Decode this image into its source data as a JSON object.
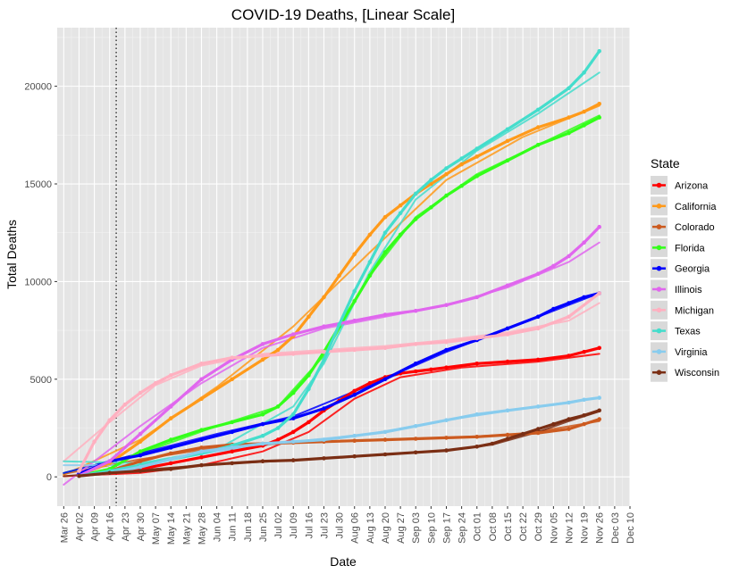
{
  "chart_data": {
    "type": "line",
    "title": "COVID-19 Deaths, [Linear Scale]",
    "xlabel": "Date",
    "ylabel": "Total Deaths",
    "ylim": [
      -1500,
      23000
    ],
    "yticks": [
      0,
      5000,
      10000,
      15000,
      20000
    ],
    "xlim": [
      -3,
      259
    ],
    "xtick_labels": [
      "Mar 26",
      "Apr 02",
      "Apr 09",
      "Apr 16",
      "Apr 23",
      "Apr 30",
      "May 07",
      "May 14",
      "May 21",
      "May 28",
      "Jun 04",
      "Jun 11",
      "Jun 18",
      "Jun 25",
      "Jul 02",
      "Jul 09",
      "Jul 16",
      "Jul 23",
      "Jul 30",
      "Aug 06",
      "Aug 13",
      "Aug 20",
      "Aug 27",
      "Sep 03",
      "Sep 10",
      "Sep 17",
      "Sep 24",
      "Oct 01",
      "Oct 08",
      "Oct 15",
      "Oct 22",
      "Oct 29",
      "Nov 05",
      "Nov 12",
      "Nov 19",
      "Nov 26",
      "Dec 03",
      "Dec 10"
    ],
    "xtick_days": [
      0,
      7,
      14,
      21,
      28,
      35,
      42,
      49,
      56,
      63,
      70,
      77,
      84,
      91,
      98,
      105,
      112,
      119,
      126,
      133,
      140,
      147,
      154,
      161,
      168,
      175,
      182,
      189,
      196,
      203,
      210,
      217,
      224,
      231,
      238,
      245,
      252,
      259
    ],
    "vline_day": 24,
    "grid": true,
    "legend_position": "right",
    "legend_title": "State",
    "series": [
      {
        "name": "Arizona",
        "color": "#ff0000",
        "x": [
          7,
          21,
          35,
          49,
          63,
          77,
          91,
          98,
          105,
          112,
          119,
          126,
          133,
          140,
          147,
          154,
          161,
          168,
          175,
          189,
          203,
          217,
          231,
          238,
          245
        ],
        "values": [
          100,
          200,
          400,
          700,
          1000,
          1300,
          1600,
          1900,
          2300,
          2800,
          3400,
          3900,
          4400,
          4800,
          5100,
          5300,
          5400,
          5500,
          5600,
          5800,
          5900,
          6000,
          6200,
          6400,
          6600
        ],
        "fit": [
          [
            0,
            30
          ],
          [
            35,
            200
          ],
          [
            63,
            600
          ],
          [
            91,
            1300
          ],
          [
            112,
            2300
          ],
          [
            133,
            4000
          ],
          [
            154,
            5100
          ],
          [
            182,
            5600
          ],
          [
            217,
            5900
          ],
          [
            245,
            6300
          ]
        ]
      },
      {
        "name": "California",
        "color": "#ff9a1a",
        "x": [
          7,
          21,
          35,
          49,
          63,
          77,
          91,
          98,
          105,
          112,
          119,
          126,
          133,
          140,
          147,
          154,
          161,
          168,
          175,
          182,
          189,
          203,
          217,
          231,
          238,
          245
        ],
        "values": [
          100,
          700,
          1800,
          3000,
          4000,
          5000,
          6000,
          6500,
          7200,
          8200,
          9200,
          10300,
          11400,
          12400,
          13300,
          13900,
          14500,
          15000,
          15500,
          16000,
          16400,
          17200,
          17900,
          18400,
          18700,
          19100
        ],
        "fit": [
          [
            0,
            100
          ],
          [
            35,
            1900
          ],
          [
            70,
            4600
          ],
          [
            105,
            7700
          ],
          [
            140,
            11500
          ],
          [
            175,
            15200
          ],
          [
            210,
            17400
          ],
          [
            245,
            19000
          ]
        ]
      },
      {
        "name": "Colorado",
        "color": "#cc5a1f",
        "x": [
          7,
          21,
          35,
          49,
          63,
          77,
          91,
          105,
          119,
          133,
          147,
          161,
          175,
          189,
          203,
          217,
          231,
          238,
          245
        ],
        "values": [
          50,
          300,
          800,
          1200,
          1500,
          1650,
          1700,
          1750,
          1800,
          1850,
          1900,
          1950,
          2000,
          2050,
          2150,
          2250,
          2450,
          2700,
          2950
        ],
        "fit": [
          [
            0,
            150
          ],
          [
            35,
            900
          ],
          [
            70,
            1500
          ],
          [
            105,
            1750
          ],
          [
            140,
            1900
          ],
          [
            175,
            2000
          ],
          [
            210,
            2200
          ],
          [
            245,
            2850
          ]
        ]
      },
      {
        "name": "Florida",
        "color": "#33ff1a",
        "x": [
          7,
          21,
          35,
          49,
          63,
          77,
          91,
          98,
          105,
          112,
          119,
          126,
          133,
          140,
          147,
          154,
          161,
          168,
          175,
          182,
          189,
          203,
          217,
          231,
          238,
          245
        ],
        "values": [
          50,
          400,
          1300,
          1900,
          2400,
          2800,
          3200,
          3600,
          4300,
          5200,
          6400,
          7700,
          9000,
          10300,
          11500,
          12400,
          13200,
          13800,
          14400,
          14900,
          15400,
          16200,
          17000,
          17600,
          18000,
          18400
        ],
        "fit": [
          [
            0,
            200
          ],
          [
            35,
            1200
          ],
          [
            70,
            2600
          ],
          [
            98,
            3600
          ],
          [
            119,
            6200
          ],
          [
            140,
            10300
          ],
          [
            161,
            13300
          ],
          [
            189,
            15500
          ],
          [
            217,
            17000
          ],
          [
            245,
            18500
          ]
        ]
      },
      {
        "name": "Georgia",
        "color": "#0000ff",
        "x": [
          7,
          21,
          35,
          49,
          63,
          77,
          91,
          105,
          119,
          133,
          147,
          161,
          175,
          189,
          203,
          217,
          224,
          231,
          238,
          245
        ],
        "values": [
          150,
          800,
          1100,
          1500,
          1900,
          2300,
          2700,
          3000,
          3500,
          4200,
          5000,
          5800,
          6500,
          7000,
          7600,
          8200,
          8600,
          8900,
          9200,
          9400
        ],
        "fit": [
          [
            0,
            200
          ],
          [
            35,
            1200
          ],
          [
            70,
            2200
          ],
          [
            105,
            3100
          ],
          [
            140,
            4700
          ],
          [
            175,
            6400
          ],
          [
            210,
            7900
          ],
          [
            245,
            9400
          ]
        ]
      },
      {
        "name": "Illinois",
        "color": "#e066ee",
        "x": [
          7,
          21,
          35,
          49,
          63,
          77,
          91,
          105,
          119,
          133,
          147,
          161,
          175,
          189,
          203,
          217,
          224,
          231,
          238,
          245
        ],
        "values": [
          50,
          800,
          2200,
          3600,
          5000,
          6000,
          6800,
          7300,
          7700,
          8000,
          8300,
          8500,
          8800,
          9200,
          9800,
          10400,
          10800,
          11300,
          12000,
          12800
        ],
        "fit": [
          [
            0,
            -400
          ],
          [
            35,
            2600
          ],
          [
            63,
            4800
          ],
          [
            91,
            6600
          ],
          [
            119,
            7600
          ],
          [
            147,
            8200
          ],
          [
            175,
            8800
          ],
          [
            203,
            9700
          ],
          [
            231,
            11000
          ],
          [
            245,
            12000
          ]
        ]
      },
      {
        "name": "Michigan",
        "color": "#ffb0c0",
        "x": [
          7,
          14,
          21,
          28,
          35,
          42,
          49,
          63,
          77,
          91,
          105,
          119,
          133,
          147,
          161,
          175,
          189,
          203,
          217,
          231,
          245
        ],
        "values": [
          300,
          1800,
          2900,
          3700,
          4300,
          4800,
          5200,
          5800,
          6100,
          6200,
          6300,
          6400,
          6500,
          6600,
          6800,
          6900,
          7100,
          7300,
          7600,
          8200,
          9400
        ],
        "fit": [
          [
            0,
            800
          ],
          [
            21,
            2800
          ],
          [
            42,
            4700
          ],
          [
            63,
            5700
          ],
          [
            91,
            6300
          ],
          [
            119,
            6500
          ],
          [
            147,
            6700
          ],
          [
            175,
            7000
          ],
          [
            203,
            7400
          ],
          [
            231,
            8000
          ],
          [
            245,
            8900
          ]
        ]
      },
      {
        "name": "Texas",
        "color": "#44ddcc",
        "x": [
          7,
          21,
          35,
          49,
          63,
          77,
          91,
          98,
          105,
          112,
          119,
          126,
          133,
          140,
          147,
          154,
          161,
          168,
          175,
          182,
          189,
          203,
          217,
          231,
          238,
          245
        ],
        "values": [
          50,
          300,
          600,
          900,
          1200,
          1600,
          2100,
          2500,
          3200,
          4500,
          6000,
          7800,
          9500,
          11000,
          12500,
          13500,
          14500,
          15200,
          15800,
          16300,
          16800,
          17800,
          18800,
          19900,
          20700,
          21800
        ],
        "fit": [
          [
            0,
            800
          ],
          [
            35,
            700
          ],
          [
            70,
            1400
          ],
          [
            105,
            3600
          ],
          [
            119,
            5800
          ],
          [
            140,
            10500
          ],
          [
            161,
            14200
          ],
          [
            189,
            16700
          ],
          [
            217,
            18600
          ],
          [
            245,
            20700
          ]
        ]
      },
      {
        "name": "Virginia",
        "color": "#88ccee",
        "x": [
          7,
          21,
          35,
          49,
          63,
          77,
          91,
          105,
          119,
          133,
          147,
          161,
          175,
          189,
          203,
          217,
          231,
          238,
          245
        ],
        "values": [
          50,
          200,
          500,
          900,
          1300,
          1500,
          1700,
          1800,
          1900,
          2100,
          2300,
          2600,
          2900,
          3200,
          3400,
          3600,
          3800,
          3950,
          4050
        ],
        "fit": [
          [
            0,
            600
          ],
          [
            35,
            600
          ],
          [
            70,
            1300
          ],
          [
            105,
            1800
          ],
          [
            140,
            2200
          ],
          [
            175,
            2900
          ],
          [
            210,
            3500
          ],
          [
            245,
            4050
          ]
        ]
      },
      {
        "name": "Wisconsin",
        "color": "#7a2e14",
        "x": [
          7,
          21,
          35,
          49,
          63,
          77,
          91,
          105,
          119,
          133,
          147,
          161,
          175,
          189,
          196,
          203,
          210,
          217,
          224,
          231,
          238,
          245
        ],
        "values": [
          50,
          200,
          300,
          400,
          600,
          700,
          800,
          850,
          950,
          1050,
          1150,
          1250,
          1350,
          1550,
          1700,
          1950,
          2200,
          2450,
          2700,
          2950,
          3150,
          3400
        ],
        "fit": [
          [
            0,
            30
          ],
          [
            35,
            350
          ],
          [
            70,
            650
          ],
          [
            105,
            850
          ],
          [
            140,
            1100
          ],
          [
            175,
            1350
          ],
          [
            196,
            1650
          ],
          [
            217,
            2300
          ],
          [
            231,
            2850
          ],
          [
            245,
            3350
          ]
        ]
      }
    ]
  }
}
